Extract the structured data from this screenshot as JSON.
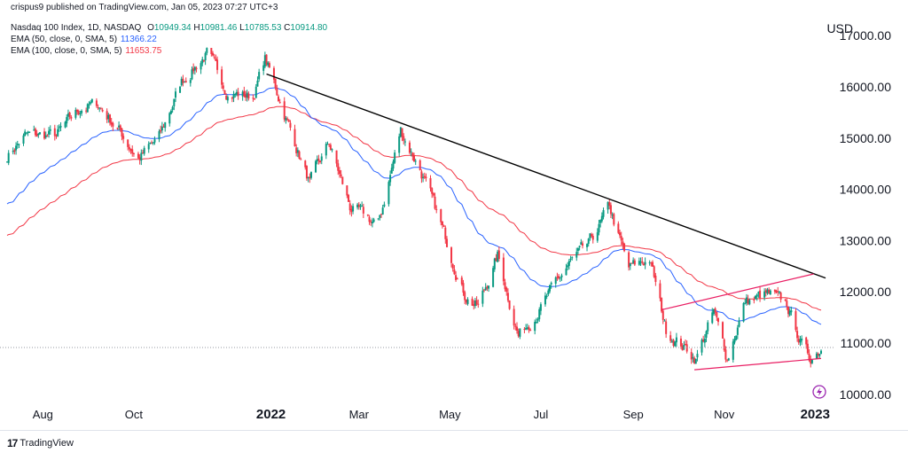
{
  "header": {
    "publisher": "crispus9 published on TradingView.com, Jan 05, 2023 07:27 UTC+3",
    "symbol": "Nasdaq 100 Index, 1D, NASDAQ",
    "ohlc": [
      {
        "label": "O",
        "value": "10949.34"
      },
      {
        "label": "H",
        "value": "10981.46"
      },
      {
        "label": "L",
        "value": "10785.53"
      },
      {
        "label": "C",
        "value": "10914.80"
      }
    ],
    "ema50": {
      "label": "EMA (50, close, 0, SMA, 5)",
      "value": "11366.22"
    },
    "ema100": {
      "label": "EMA (100, close, 0, SMA, 5)",
      "value": "11653.75"
    },
    "currency": "USD"
  },
  "footer": {
    "brand": "TradingView",
    "brand_mark": "17"
  },
  "colors": {
    "up": "#089981",
    "down": "#f23645",
    "ema50": "#2962ff",
    "ema100": "#f23645",
    "trendline": "#000000",
    "pattern": "#e91e63",
    "axis_text": "#131722",
    "last_price": "#9598a1"
  },
  "chart_data": {
    "type": "candlestick",
    "title": "Nasdaq 100 Index, 1D, NASDAQ",
    "y_ticks": [
      "17000.00",
      "16000.00",
      "15000.00",
      "14000.00",
      "13000.00",
      "12000.00",
      "11000.00",
      "10000.00"
    ],
    "y_tick_values": [
      17000,
      16000,
      15000,
      14000,
      13000,
      12000,
      11000,
      10000
    ],
    "ylim": [
      9600,
      17400
    ],
    "x_range": [
      "2021-07-08",
      "2023-01-05"
    ],
    "x_ticks": [
      {
        "label": "Aug",
        "date": "2021-08-01"
      },
      {
        "label": "Oct",
        "date": "2021-10-01"
      },
      {
        "label": "2022",
        "date": "2022-01-01"
      },
      {
        "label": "Mar",
        "date": "2022-03-01"
      },
      {
        "label": "May",
        "date": "2022-05-01"
      },
      {
        "label": "Jul",
        "date": "2022-07-01"
      },
      {
        "label": "Sep",
        "date": "2022-09-01"
      },
      {
        "label": "Nov",
        "date": "2022-11-01"
      },
      {
        "label": "2023",
        "date": "2023-01-01"
      }
    ],
    "price_path": [
      [
        "2021-07-08",
        14650
      ],
      [
        "2021-07-20",
        15050
      ],
      [
        "2021-08-10",
        15050
      ],
      [
        "2021-08-27",
        15600
      ],
      [
        "2021-09-07",
        15650
      ],
      [
        "2021-09-20",
        15200
      ],
      [
        "2021-10-04",
        14600
      ],
      [
        "2021-10-18",
        15000
      ],
      [
        "2021-11-02",
        16100
      ],
      [
        "2021-11-19",
        16650
      ],
      [
        "2021-12-03",
        15900
      ],
      [
        "2021-12-20",
        15800
      ],
      [
        "2021-12-28",
        16550
      ],
      [
        "2022-01-05",
        15900
      ],
      [
        "2022-01-27",
        14100
      ],
      [
        "2022-02-09",
        14900
      ],
      [
        "2022-02-23",
        13650
      ],
      [
        "2022-03-14",
        13300
      ],
      [
        "2022-03-29",
        15150
      ],
      [
        "2022-04-11",
        14400
      ],
      [
        "2022-04-25",
        13300
      ],
      [
        "2022-05-11",
        11950
      ],
      [
        "2022-05-20",
        11700
      ],
      [
        "2022-06-02",
        12700
      ],
      [
        "2022-06-16",
        11150
      ],
      [
        "2022-07-01",
        11700
      ],
      [
        "2022-07-20",
        12550
      ],
      [
        "2022-08-02",
        12900
      ],
      [
        "2022-08-16",
        13650
      ],
      [
        "2022-08-29",
        12450
      ],
      [
        "2022-09-12",
        12650
      ],
      [
        "2022-09-23",
        11250
      ],
      [
        "2022-10-13",
        10700
      ],
      [
        "2022-10-25",
        11600
      ],
      [
        "2022-11-03",
        10700
      ],
      [
        "2022-11-15",
        11800
      ],
      [
        "2022-11-30",
        11950
      ],
      [
        "2022-12-13",
        11750
      ],
      [
        "2022-12-22",
        11050
      ],
      [
        "2022-12-28",
        10700
      ],
      [
        "2023-01-05",
        10915
      ]
    ],
    "last_price": 10914.8,
    "ema50_last": 11366.22,
    "ema100_last": 11653.75,
    "annotations": [
      {
        "type": "trendline",
        "points": [
          [
            "2021-12-29",
            16250
          ],
          [
            "2023-01-08",
            12270
          ]
        ]
      },
      {
        "type": "wedge-top",
        "points": [
          [
            "2022-09-20",
            11650
          ],
          [
            "2022-12-31",
            12350
          ]
        ]
      },
      {
        "type": "wedge-bottom",
        "points": [
          [
            "2022-10-12",
            10480
          ],
          [
            "2023-01-05",
            10700
          ]
        ]
      }
    ]
  }
}
